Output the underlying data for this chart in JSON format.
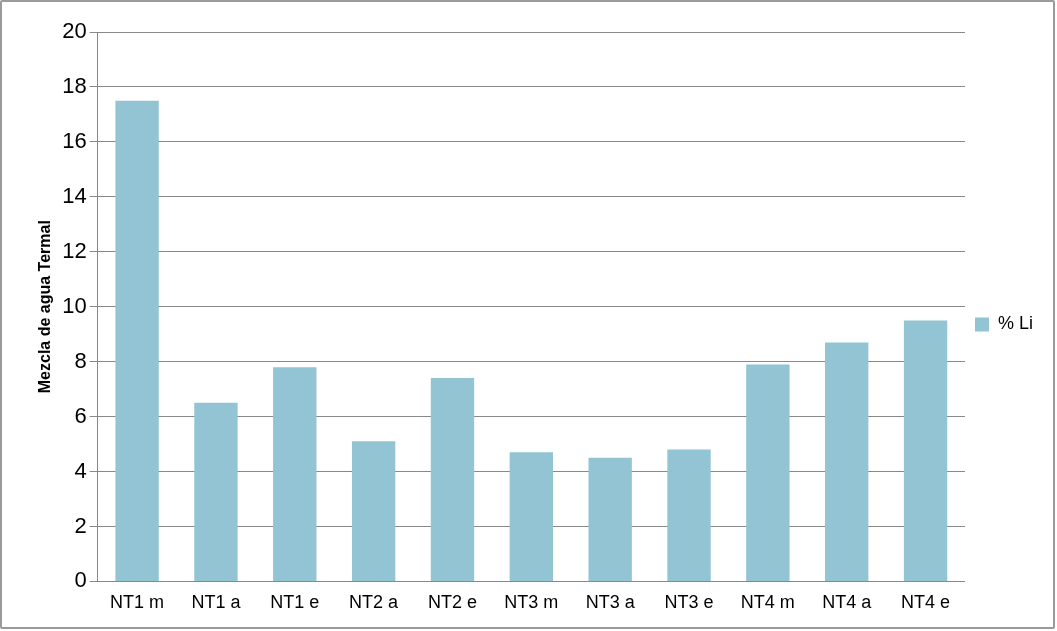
{
  "chart_data": {
    "type": "bar",
    "ylabel": "Mezcla de agua Termal",
    "categories": [
      "NT1 m",
      "NT1 a",
      "NT1 e",
      "NT2 a",
      "NT2 e",
      "NT3 m",
      "NT3 a",
      "NT3 e",
      "NT4 m",
      "NT4 a",
      "NT4 e"
    ],
    "series": [
      {
        "name": "% Li",
        "color": "#93c4d4",
        "values": [
          17.5,
          6.5,
          7.8,
          5.1,
          7.4,
          4.7,
          4.5,
          4.8,
          7.9,
          8.7,
          9.5
        ]
      }
    ],
    "ylim": [
      0,
      20
    ],
    "yticks": [
      0,
      2,
      4,
      6,
      8,
      10,
      12,
      14,
      16,
      18,
      20
    ],
    "grid": "y",
    "legend": "right"
  }
}
